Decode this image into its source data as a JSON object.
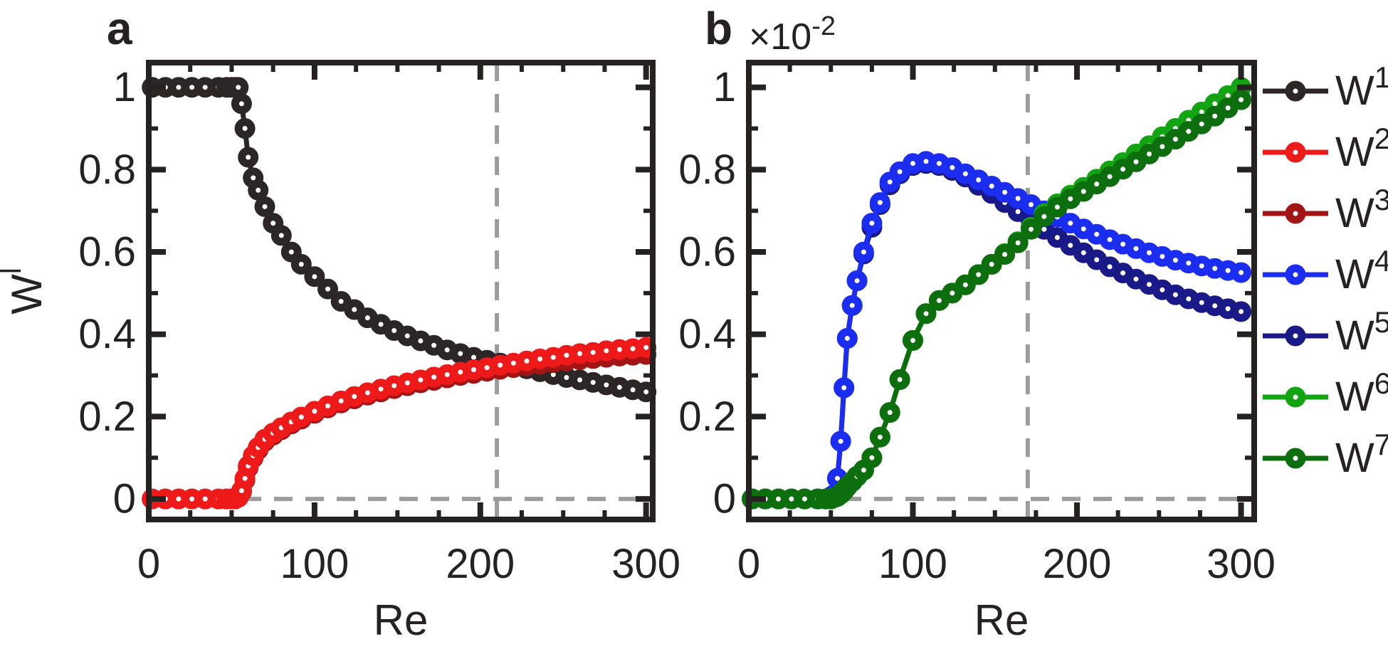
{
  "figure": {
    "background": "#ffffff",
    "axis_color": "#262222",
    "ref_line_color": "#9c9c9c",
    "panels": [
      {
        "letter": "a",
        "xlabel": "Re",
        "ylabel": {
          "base": "W",
          "sup": "l"
        },
        "x_tick_labels": [
          "0",
          "100",
          "200",
          "300"
        ],
        "y_tick_labels": [
          "0",
          "0.2",
          "0.4",
          "0.6",
          "0.8",
          "1"
        ]
      },
      {
        "letter": "b",
        "xlabel": "Re",
        "multiplier": {
          "base": "×10",
          "sup": "-2"
        },
        "x_tick_labels": [
          "0",
          "100",
          "200",
          "300"
        ],
        "y_tick_labels": [
          "0",
          "0.2",
          "0.4",
          "0.6",
          "0.8",
          "1"
        ]
      }
    ],
    "legend": [
      {
        "base": "W",
        "sup": "1",
        "color": "#2d2626"
      },
      {
        "base": "W",
        "sup": "2",
        "color": "#ee1a1a"
      },
      {
        "base": "W",
        "sup": "3",
        "color": "#a31515"
      },
      {
        "base": "W",
        "sup": "4",
        "color": "#1b2df0"
      },
      {
        "base": "W",
        "sup": "5",
        "color": "#191987"
      },
      {
        "base": "W",
        "sup": "6",
        "color": "#13a413"
      },
      {
        "base": "W",
        "sup": "7",
        "color": "#0d6e0d"
      }
    ]
  },
  "chart_data": [
    {
      "type": "line",
      "title": "",
      "xlabel": "Re",
      "ylabel": "W^l",
      "xlim": [
        0,
        304
      ],
      "ylim": [
        -0.05,
        1.06
      ],
      "x_major_ticks": [
        0,
        100,
        200,
        300
      ],
      "x_minor_step": 25,
      "y_major_ticks": [
        0,
        0.2,
        0.4,
        0.6,
        0.8,
        1
      ],
      "y_minor_step": 0.1,
      "grid": false,
      "reference_lines": {
        "horizontal_y": 0,
        "vertical_x": 210
      },
      "x": [
        2,
        10,
        18,
        26,
        34,
        42,
        47,
        50,
        52,
        54,
        56,
        58,
        60,
        63,
        66,
        70,
        75,
        80,
        86,
        92,
        100,
        108,
        116,
        124,
        132,
        140,
        148,
        156,
        164,
        172,
        180,
        188,
        196,
        204,
        212,
        220,
        228,
        236,
        244,
        252,
        260,
        268,
        276,
        284,
        292,
        300
      ],
      "series": [
        {
          "name": "W1",
          "color": "#2d2626",
          "values": [
            1,
            1,
            1,
            1,
            1,
            1,
            1,
            1,
            1,
            1,
            0.96,
            0.9,
            0.83,
            0.78,
            0.75,
            0.71,
            0.67,
            0.64,
            0.6,
            0.57,
            0.54,
            0.51,
            0.48,
            0.46,
            0.44,
            0.424,
            0.409,
            0.396,
            0.384,
            0.373,
            0.362,
            0.353,
            0.344,
            0.337,
            0.33,
            0.323,
            0.316,
            0.309,
            0.302,
            0.295,
            0.289,
            0.283,
            0.277,
            0.271,
            0.265,
            0.26
          ]
        },
        {
          "name": "W3",
          "color": "#a31515",
          "values": [
            0,
            0,
            0,
            0,
            0,
            0,
            0,
            0,
            0,
            0.004,
            0.018,
            0.046,
            0.076,
            0.1,
            0.12,
            0.14,
            0.155,
            0.168,
            0.182,
            0.194,
            0.208,
            0.221,
            0.233,
            0.243,
            0.252,
            0.26,
            0.268,
            0.275,
            0.282,
            0.288,
            0.294,
            0.3,
            0.305,
            0.31,
            0.315,
            0.319,
            0.323,
            0.327,
            0.331,
            0.335,
            0.338,
            0.341,
            0.344,
            0.347,
            0.349,
            0.351
          ]
        },
        {
          "name": "W2",
          "color": "#ee1a1a",
          "values": [
            0,
            0,
            0,
            0,
            0,
            0,
            0,
            0,
            0,
            0.005,
            0.02,
            0.05,
            0.08,
            0.105,
            0.125,
            0.145,
            0.16,
            0.173,
            0.187,
            0.199,
            0.213,
            0.226,
            0.238,
            0.249,
            0.258,
            0.267,
            0.275,
            0.282,
            0.289,
            0.296,
            0.302,
            0.308,
            0.314,
            0.319,
            0.325,
            0.33,
            0.335,
            0.34,
            0.344,
            0.349,
            0.353,
            0.356,
            0.36,
            0.363,
            0.365,
            0.368
          ]
        }
      ]
    },
    {
      "type": "line",
      "title": "",
      "xlabel": "Re",
      "ylabel": "W^l (×10^-2)",
      "scale_factor": "1e-2",
      "xlim": [
        0,
        308
      ],
      "ylim": [
        -0.05,
        1.06
      ],
      "x_major_ticks": [
        0,
        100,
        200,
        300
      ],
      "x_minor_step": 25,
      "y_major_ticks": [
        0,
        0.2,
        0.4,
        0.6,
        0.8,
        1
      ],
      "y_minor_step": 0.1,
      "grid": false,
      "reference_lines": {
        "horizontal_y": 0,
        "vertical_x": 170
      },
      "x": [
        2,
        10,
        18,
        26,
        34,
        42,
        47,
        50,
        52,
        54,
        56,
        58,
        60,
        63,
        66,
        70,
        75,
        80,
        86,
        92,
        100,
        108,
        116,
        124,
        132,
        140,
        148,
        156,
        164,
        172,
        180,
        188,
        196,
        204,
        212,
        220,
        228,
        236,
        244,
        252,
        260,
        268,
        276,
        284,
        292,
        300
      ],
      "series": [
        {
          "name": "W5",
          "color": "#191987",
          "values": [
            0,
            0,
            0,
            0,
            0,
            0,
            0,
            0.005,
            0.01,
            0.05,
            0.14,
            0.27,
            0.39,
            0.47,
            0.53,
            0.595,
            0.66,
            0.715,
            0.763,
            0.79,
            0.81,
            0.815,
            0.81,
            0.798,
            0.782,
            0.762,
            0.742,
            0.72,
            0.698,
            0.676,
            0.655,
            0.635,
            0.616,
            0.598,
            0.581,
            0.564,
            0.549,
            0.534,
            0.521,
            0.508,
            0.496,
            0.486,
            0.477,
            0.469,
            0.462,
            0.455
          ]
        },
        {
          "name": "W4",
          "color": "#1b2df0",
          "values": [
            0,
            0,
            0,
            0,
            0,
            0,
            0,
            0.005,
            0.01,
            0.05,
            0.14,
            0.27,
            0.39,
            0.47,
            0.53,
            0.6,
            0.67,
            0.72,
            0.77,
            0.795,
            0.815,
            0.82,
            0.815,
            0.805,
            0.79,
            0.775,
            0.76,
            0.745,
            0.73,
            0.715,
            0.7,
            0.685,
            0.67,
            0.656,
            0.643,
            0.63,
            0.619,
            0.608,
            0.598,
            0.589,
            0.58,
            0.573,
            0.566,
            0.56,
            0.555,
            0.55
          ]
        },
        {
          "name": "W6",
          "color": "#13a413",
          "values": [
            0,
            0,
            0,
            0,
            0,
            0,
            0,
            0,
            0.003,
            0.006,
            0.012,
            0.02,
            0.03,
            0.042,
            0.055,
            0.07,
            0.1,
            0.15,
            0.21,
            0.29,
            0.385,
            0.45,
            0.482,
            0.5,
            0.52,
            0.545,
            0.57,
            0.596,
            0.625,
            0.66,
            0.693,
            0.717,
            0.738,
            0.757,
            0.777,
            0.797,
            0.817,
            0.838,
            0.858,
            0.88,
            0.9,
            0.92,
            0.94,
            0.96,
            0.98,
            1.0
          ]
        },
        {
          "name": "W7",
          "color": "#0d6e0d",
          "values": [
            0,
            0,
            0,
            0,
            0,
            0,
            0,
            0,
            0.003,
            0.006,
            0.012,
            0.02,
            0.03,
            0.042,
            0.055,
            0.07,
            0.1,
            0.15,
            0.21,
            0.29,
            0.385,
            0.45,
            0.482,
            0.5,
            0.52,
            0.545,
            0.57,
            0.594,
            0.622,
            0.655,
            0.686,
            0.709,
            0.729,
            0.747,
            0.765,
            0.783,
            0.801,
            0.819,
            0.838,
            0.856,
            0.874,
            0.893,
            0.911,
            0.93,
            0.95,
            0.97
          ]
        }
      ]
    }
  ]
}
